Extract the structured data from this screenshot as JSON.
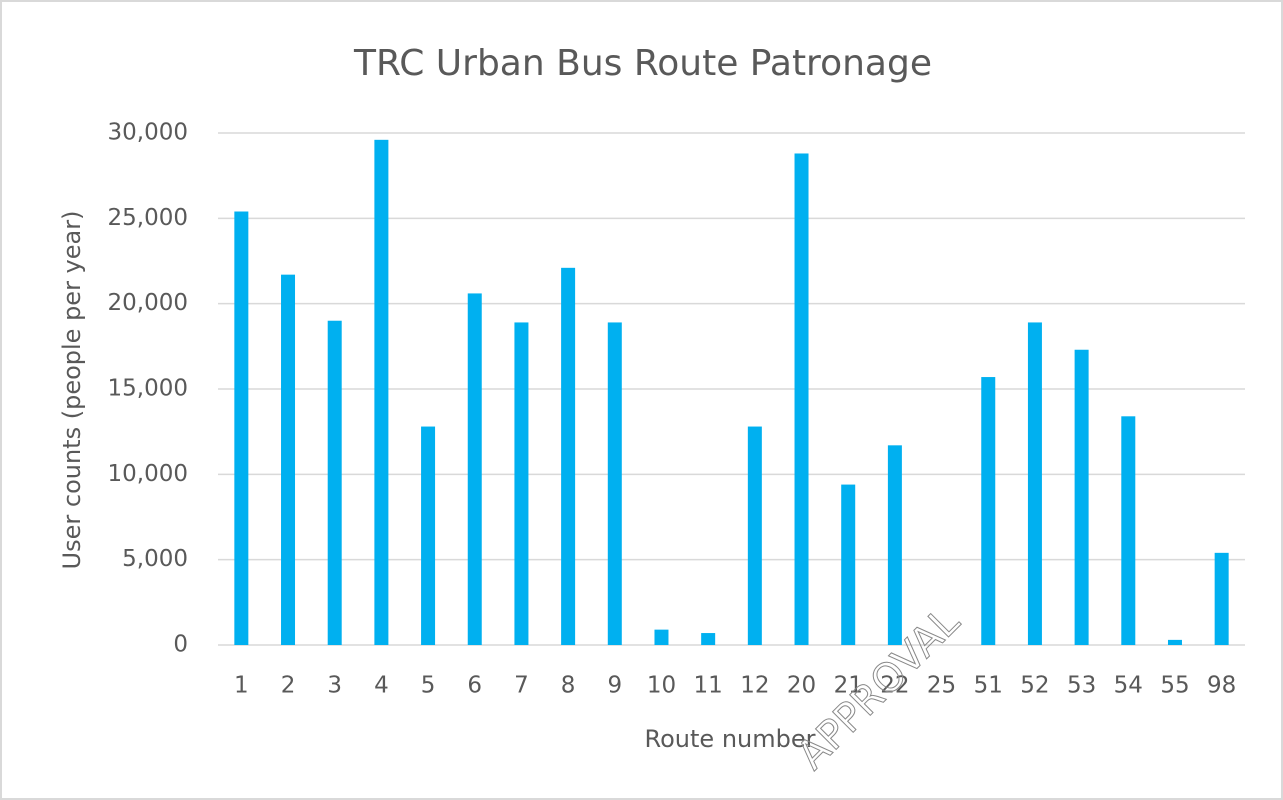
{
  "chart_data": {
    "type": "bar",
    "title": "TRC Urban Bus Route Patronage",
    "x_label": "Route number",
    "y_label": "User counts (people per year)",
    "watermark": "APPROVAL",
    "categories": [
      "1",
      "2",
      "3",
      "4",
      "5",
      "6",
      "7",
      "8",
      "9",
      "10",
      "11",
      "12",
      "20",
      "21",
      "22",
      "25",
      "51",
      "52",
      "53",
      "54",
      "55",
      "98"
    ],
    "values": [
      25400,
      21700,
      19000,
      29600,
      12800,
      20600,
      18900,
      22100,
      18900,
      900,
      700,
      12800,
      28800,
      9400,
      11700,
      0,
      15700,
      18900,
      17300,
      13400,
      300,
      5400
    ],
    "color": "#00b0f0",
    "ylim": [
      0,
      30000
    ],
    "yticks": [
      0,
      {
        "value": 5000,
        "label": "5,000"
      },
      {
        "value": 10000,
        "label": "10,000"
      },
      {
        "value": 15000,
        "label": "15,000"
      },
      {
        "value": 20000,
        "label": "20,000"
      },
      {
        "value": 25000,
        "label": "25,000"
      },
      {
        "value": 30000,
        "label": "30,000"
      }
    ],
    "grid": true
  }
}
